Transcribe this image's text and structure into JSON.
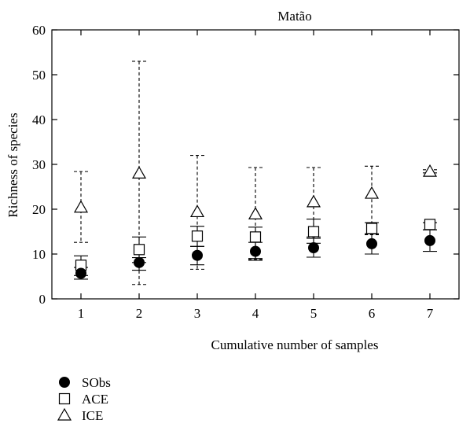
{
  "chart_data": {
    "type": "scatter",
    "title": "Matão",
    "xlabel": "Cumulative number of samples",
    "ylabel": "Richness of species",
    "xlim": [
      0.5,
      7.5
    ],
    "ylim": [
      0,
      60
    ],
    "x_ticks": [
      1,
      2,
      3,
      4,
      5,
      6,
      7
    ],
    "y_ticks": [
      0,
      10,
      20,
      30,
      40,
      50,
      60
    ],
    "grid": false,
    "legend_position": "bottom-left",
    "x": [
      1,
      2,
      3,
      4,
      5,
      6,
      7
    ],
    "series": [
      {
        "name": "SObs",
        "marker": "circle-filled",
        "line_style": "solid",
        "values": [
          5.7,
          8.1,
          9.7,
          10.6,
          11.4,
          12.3,
          13.0
        ],
        "error_low": [
          4.4,
          6.4,
          7.6,
          8.6,
          9.3,
          10.0,
          10.6
        ],
        "error_high": [
          7.0,
          9.2,
          11.7,
          12.6,
          13.5,
          14.5,
          15.4
        ]
      },
      {
        "name": "ACE",
        "marker": "square-open",
        "line_style": "solid",
        "values": [
          7.5,
          11.0,
          14.0,
          13.8,
          15.0,
          15.7,
          16.6
        ],
        "error_low": [
          5.2,
          8.1,
          11.7,
          9.0,
          12.4,
          14.5,
          15.4
        ],
        "error_high": [
          9.6,
          13.8,
          16.2,
          16.0,
          17.8,
          17.0,
          17.0
        ]
      },
      {
        "name": "ICE",
        "marker": "triangle-open",
        "line_style": "dashed",
        "values": [
          20.4,
          28.0,
          19.4,
          18.9,
          21.6,
          23.5,
          28.4
        ],
        "error_low": [
          12.6,
          3.2,
          6.6,
          8.8,
          13.8,
          14.3,
          28.1
        ],
        "error_high": [
          28.4,
          53.0,
          32.0,
          29.3,
          29.3,
          29.6,
          28.8
        ]
      }
    ],
    "colors": {
      "marker": "#000000",
      "axis": "#000000",
      "background": "#ffffff"
    }
  }
}
